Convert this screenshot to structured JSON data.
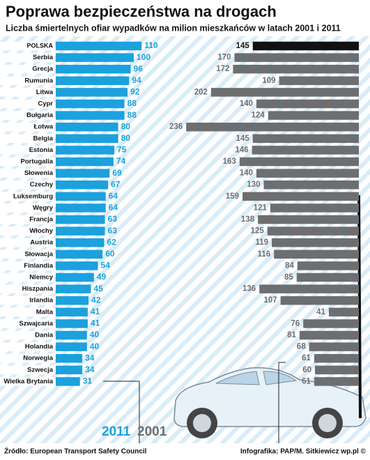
{
  "chart_data": {
    "type": "bar",
    "title": "Poprawa bezpieczeństwa na drogach",
    "subtitle": "Liczba śmiertelnych ofiar wypadków na milion mieszkańców w latach 2001 i 2011",
    "categories": [
      "POLSKA",
      "Serbia",
      "Grecja",
      "Rumunia",
      "Litwa",
      "Cypr",
      "Bułgaria",
      "Łotwa",
      "Belgia",
      "Estonia",
      "Portugalia",
      "Słowenia",
      "Czechy",
      "Luksemburg",
      "Węgry",
      "Francja",
      "Włochy",
      "Austria",
      "Słowacja",
      "Finlandia",
      "Niemcy",
      "Hiszpania",
      "Irlandia",
      "Malta",
      "Szwajcaria",
      "Dania",
      "Holandia",
      "Norwegia",
      "Szwecja",
      "Wielka Brytania"
    ],
    "series": [
      {
        "name": "2011",
        "color": "#1ba1dd",
        "values": [
          110,
          100,
          96,
          94,
          92,
          88,
          88,
          80,
          80,
          75,
          74,
          69,
          67,
          64,
          64,
          63,
          63,
          62,
          60,
          54,
          49,
          45,
          42,
          41,
          41,
          40,
          40,
          34,
          34,
          31
        ]
      },
      {
        "name": "2001",
        "color": "#6d6e70",
        "values": [
          145,
          170,
          172,
          109,
          202,
          140,
          124,
          236,
          145,
          146,
          163,
          140,
          130,
          159,
          121,
          138,
          125,
          119,
          116,
          84,
          85,
          136,
          107,
          41,
          76,
          81,
          68,
          61,
          60,
          61
        ]
      }
    ],
    "highlight_color": "#111111",
    "source": "Źródło: European Transport Safety Council",
    "credit": "Infografika: PAP/M. Sitkiewicz wp.pl ©"
  }
}
